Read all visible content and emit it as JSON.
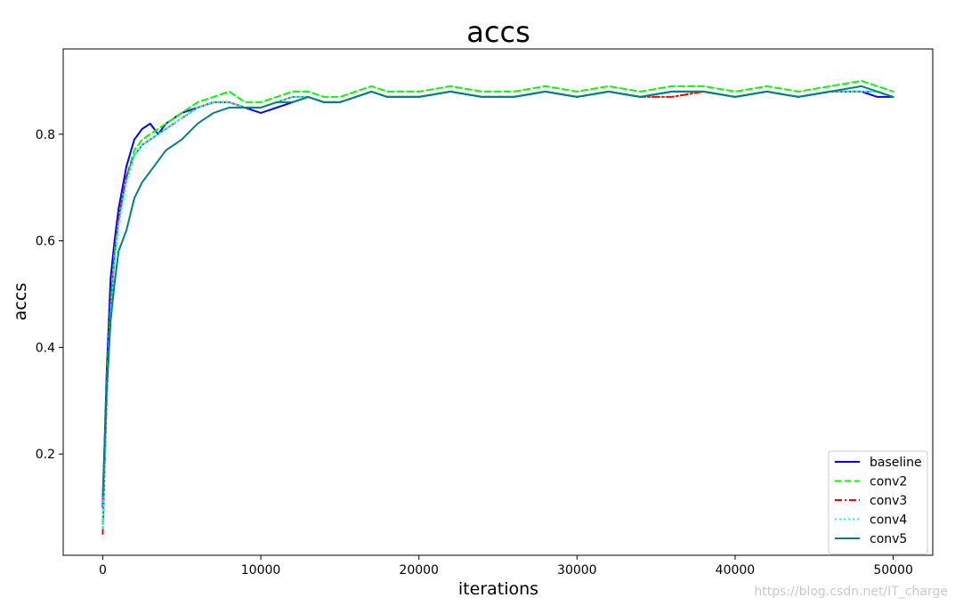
{
  "chart_data": {
    "type": "line",
    "title": "accs",
    "xlabel": "iterations",
    "ylabel": "accs",
    "xlim": [
      -2500,
      52500
    ],
    "ylim": [
      0.01,
      0.96
    ],
    "xticks": [
      0,
      10000,
      20000,
      30000,
      40000,
      50000
    ],
    "yticks": [
      0.2,
      0.4,
      0.6,
      0.8
    ],
    "xtick_labels": [
      "0",
      "10000",
      "20000",
      "30000",
      "40000",
      "50000"
    ],
    "ytick_labels": [
      "0.2",
      "0.4",
      "0.6",
      "0.8"
    ],
    "grid": false,
    "legend_position": "lower-right",
    "series": [
      {
        "name": "baseline",
        "color": "#0000ff",
        "dash": "solid",
        "x": [
          0,
          250,
          500,
          750,
          1000,
          1500,
          2000,
          2500,
          3000,
          3500,
          4000,
          5000,
          6000,
          7000,
          8000,
          9000,
          10000,
          11000,
          12000,
          13000,
          14000,
          15000,
          16000,
          17000,
          18000,
          19000,
          20000,
          22000,
          24000,
          26000,
          28000,
          30000,
          32000,
          34000,
          36000,
          38000,
          40000,
          42000,
          44000,
          46000,
          48000,
          49000,
          50000
        ],
        "y": [
          0.1,
          0.35,
          0.53,
          0.6,
          0.66,
          0.74,
          0.79,
          0.81,
          0.82,
          0.8,
          0.82,
          0.84,
          0.85,
          0.86,
          0.86,
          0.85,
          0.84,
          0.85,
          0.86,
          0.87,
          0.86,
          0.86,
          0.87,
          0.88,
          0.87,
          0.87,
          0.87,
          0.88,
          0.87,
          0.87,
          0.88,
          0.87,
          0.88,
          0.87,
          0.88,
          0.88,
          0.87,
          0.88,
          0.87,
          0.88,
          0.88,
          0.87,
          0.87
        ]
      },
      {
        "name": "conv2",
        "color": "#00ff00",
        "dash": "dashed",
        "x": [
          0,
          250,
          500,
          750,
          1000,
          1500,
          2000,
          2500,
          3000,
          3500,
          4000,
          5000,
          6000,
          7000,
          8000,
          9000,
          10000,
          11000,
          12000,
          13000,
          14000,
          15000,
          16000,
          17000,
          18000,
          19000,
          20000,
          22000,
          24000,
          26000,
          28000,
          30000,
          32000,
          34000,
          36000,
          38000,
          40000,
          42000,
          44000,
          46000,
          48000,
          49000,
          50000
        ],
        "y": [
          0.07,
          0.33,
          0.48,
          0.58,
          0.64,
          0.72,
          0.77,
          0.79,
          0.8,
          0.81,
          0.82,
          0.84,
          0.86,
          0.87,
          0.88,
          0.86,
          0.86,
          0.87,
          0.88,
          0.88,
          0.87,
          0.87,
          0.88,
          0.89,
          0.88,
          0.88,
          0.88,
          0.89,
          0.88,
          0.88,
          0.89,
          0.88,
          0.89,
          0.88,
          0.89,
          0.89,
          0.88,
          0.89,
          0.88,
          0.89,
          0.9,
          0.89,
          0.88
        ]
      },
      {
        "name": "conv3",
        "color": "#ff0000",
        "dash": "dashdot",
        "x": [
          0,
          250,
          500,
          750,
          1000,
          1500,
          2000,
          2500,
          3000,
          3500,
          4000,
          5000,
          6000,
          7000,
          8000,
          9000,
          10000,
          11000,
          12000,
          13000,
          14000,
          15000,
          16000,
          17000,
          18000,
          19000,
          20000,
          22000,
          24000,
          26000,
          28000,
          30000,
          32000,
          34000,
          36000,
          38000,
          40000,
          42000,
          44000,
          46000,
          48000,
          49000,
          50000
        ],
        "y": [
          0.05,
          0.3,
          0.47,
          0.57,
          0.64,
          0.72,
          0.76,
          0.78,
          0.79,
          0.8,
          0.81,
          0.83,
          0.85,
          0.86,
          0.86,
          0.85,
          0.85,
          0.86,
          0.87,
          0.87,
          0.86,
          0.86,
          0.87,
          0.88,
          0.87,
          0.87,
          0.87,
          0.88,
          0.87,
          0.87,
          0.88,
          0.87,
          0.88,
          0.87,
          0.87,
          0.88,
          0.87,
          0.88,
          0.87,
          0.88,
          0.88,
          0.88,
          0.87
        ]
      },
      {
        "name": "conv4",
        "color": "#00ffff",
        "dash": "dotted",
        "x": [
          0,
          250,
          500,
          750,
          1000,
          1500,
          2000,
          2500,
          3000,
          3500,
          4000,
          5000,
          6000,
          7000,
          8000,
          9000,
          10000,
          11000,
          12000,
          13000,
          14000,
          15000,
          16000,
          17000,
          18000,
          19000,
          20000,
          22000,
          24000,
          26000,
          28000,
          30000,
          32000,
          34000,
          36000,
          38000,
          40000,
          42000,
          44000,
          46000,
          48000,
          49000,
          50000
        ],
        "y": [
          0.06,
          0.31,
          0.46,
          0.56,
          0.63,
          0.71,
          0.76,
          0.78,
          0.79,
          0.8,
          0.81,
          0.83,
          0.85,
          0.86,
          0.86,
          0.85,
          0.85,
          0.86,
          0.87,
          0.87,
          0.86,
          0.86,
          0.87,
          0.88,
          0.87,
          0.87,
          0.87,
          0.88,
          0.87,
          0.87,
          0.88,
          0.87,
          0.88,
          0.87,
          0.88,
          0.88,
          0.87,
          0.88,
          0.87,
          0.88,
          0.88,
          0.88,
          0.87
        ]
      },
      {
        "name": "conv5",
        "color": "#008080",
        "dash": "solid",
        "x": [
          0,
          250,
          500,
          750,
          1000,
          1500,
          2000,
          2500,
          3000,
          3500,
          4000,
          5000,
          6000,
          7000,
          8000,
          9000,
          10000,
          11000,
          12000,
          13000,
          14000,
          15000,
          16000,
          17000,
          18000,
          19000,
          20000,
          22000,
          24000,
          26000,
          28000,
          30000,
          32000,
          34000,
          36000,
          38000,
          40000,
          42000,
          44000,
          46000,
          48000,
          49000,
          50000
        ],
        "y": [
          0.12,
          0.32,
          0.45,
          0.52,
          0.58,
          0.62,
          0.68,
          0.71,
          0.73,
          0.75,
          0.77,
          0.79,
          0.82,
          0.84,
          0.85,
          0.85,
          0.85,
          0.86,
          0.86,
          0.87,
          0.86,
          0.86,
          0.87,
          0.88,
          0.87,
          0.87,
          0.87,
          0.88,
          0.87,
          0.87,
          0.88,
          0.87,
          0.88,
          0.87,
          0.88,
          0.88,
          0.87,
          0.88,
          0.87,
          0.88,
          0.89,
          0.88,
          0.87
        ]
      }
    ]
  },
  "watermark": "https://blog.csdn.net/IT_charge"
}
